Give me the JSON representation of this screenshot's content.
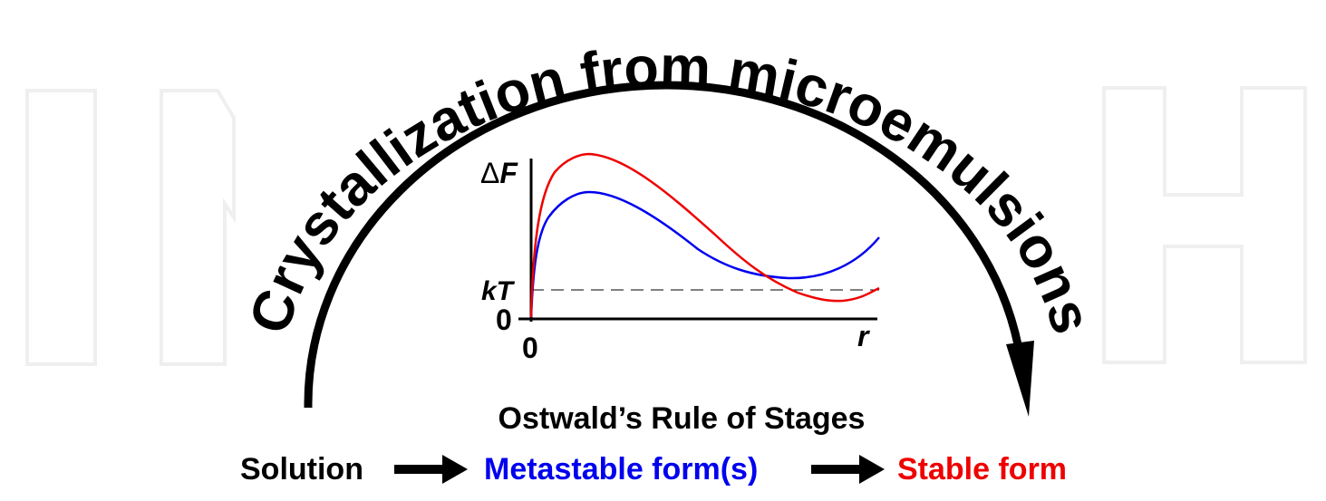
{
  "title": "Crystallization from microemulsions",
  "graph": {
    "y_label_delta": "Δ",
    "y_label_var": "F",
    "kt_label": "kT",
    "y_zero": "0",
    "x_zero": "0",
    "x_label": "r"
  },
  "rule_title": "Ostwald’s Rule of Stages",
  "sequence": {
    "solution": "Solution",
    "metastable": "Metastable form(s)",
    "stable": "Stable form"
  },
  "colors": {
    "metastable": "#0000ee",
    "stable": "#ee0000",
    "watermark": "#efefef"
  }
}
